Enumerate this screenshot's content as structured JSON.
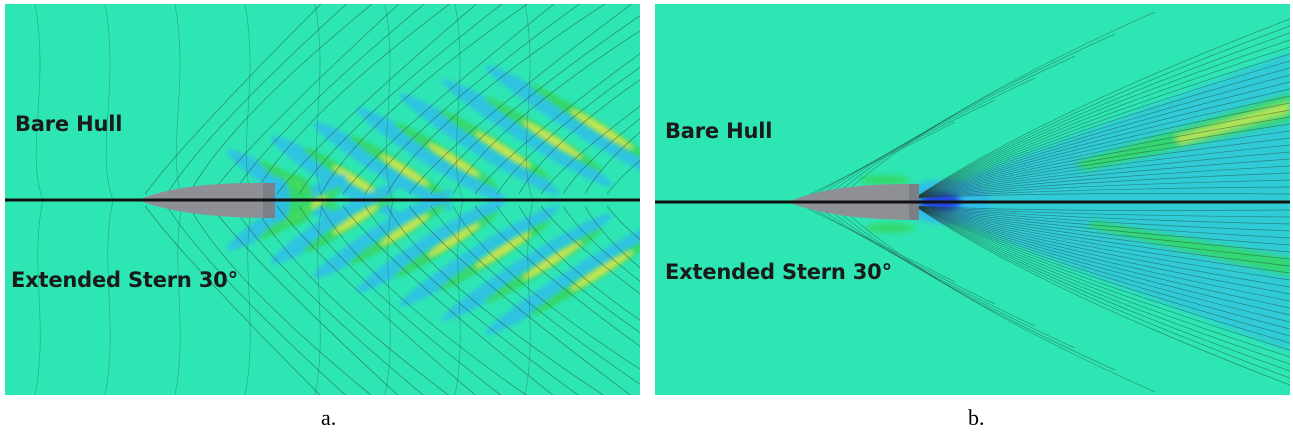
{
  "panels": [
    {
      "id": "a",
      "label_top": "Bare Hull",
      "label_bottom": "Extended Stern 30°",
      "caption": "a."
    },
    {
      "id": "b",
      "label_top": "Bare Hull",
      "label_bottom": "Extended Stern 30°",
      "caption": "b."
    }
  ],
  "colors": {
    "background": "#2ee6b4",
    "contour_line": "#1f3d33",
    "crest_yellow": "#d8e84a",
    "crest_green": "#35d860",
    "trough_blue": "#2fbde8",
    "deep_blue": "#2040e0",
    "hull": "#8f9096",
    "centerline": "#111111"
  }
}
